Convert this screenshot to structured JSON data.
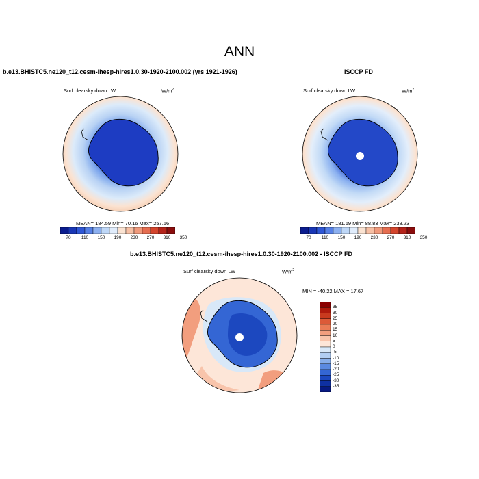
{
  "figure": {
    "title": "ANN"
  },
  "panels": {
    "model": {
      "title": "b.e13.BHISTC5.ne120_t12.cesm-ihesp-hires1.0.30-1920-2100.002 (yrs 1921-1926)",
      "variable": "Surf clearsky down LW",
      "units": "W/m",
      "units_sup": "2",
      "stats": "MEAN= 184.59  Min=  70.16  Max= 257.66"
    },
    "obs": {
      "title": "ISCCP FD",
      "variable": "Surf clearsky down LW",
      "units": "W/m",
      "units_sup": "2",
      "stats": "MEAN= 181.69  Min=  88.83  Max= 238.23"
    },
    "diff": {
      "title": "b.e13.BHISTC5.ne120_t12.cesm-ihesp-hires1.0.30-1920-2100.002 - ISCCP FD",
      "variable": "Surf clearsky down LW",
      "units": "W/m",
      "units_sup": "2",
      "stats": "MIN = -40.22 MAX =  17.67"
    }
  },
  "colorbar_abs": {
    "labels": [
      "70",
      "110",
      "150",
      "190",
      "230",
      "270",
      "310",
      "350"
    ],
    "colors": [
      "#0a1c8e",
      "#1836b5",
      "#2f57d6",
      "#5680e6",
      "#8cb0f0",
      "#bed7f7",
      "#e0ecfb",
      "#fbe3d2",
      "#f7c0a5",
      "#f09a7c",
      "#e56d50",
      "#d4452d",
      "#b5231a",
      "#8a0c0c"
    ]
  },
  "colorbar_diff": {
    "labels": [
      "35",
      "30",
      "25",
      "20",
      "15",
      "10",
      "5",
      "0",
      "-5",
      "-10",
      "-15",
      "-20",
      "-25",
      "-30",
      "-35"
    ],
    "colors": [
      "#8a0000",
      "#ae1a0c",
      "#c83a1e",
      "#dc5a38",
      "#ea7c56",
      "#f29e7e",
      "#f8c4ab",
      "#fde6d8",
      "#d8e8f8",
      "#b2cef2",
      "#86aeea",
      "#5a8ae0",
      "#3466d4",
      "#1c48bf",
      "#0e30a2",
      "#071a82"
    ]
  },
  "colors": {
    "land_outline": "#000000",
    "ocean_low_lat": "#fbe3d2",
    "ocean_mid": "#dcebfa",
    "ocean_near_ice": "#b8d2f4",
    "interior_deep": "#1a33b8"
  }
}
